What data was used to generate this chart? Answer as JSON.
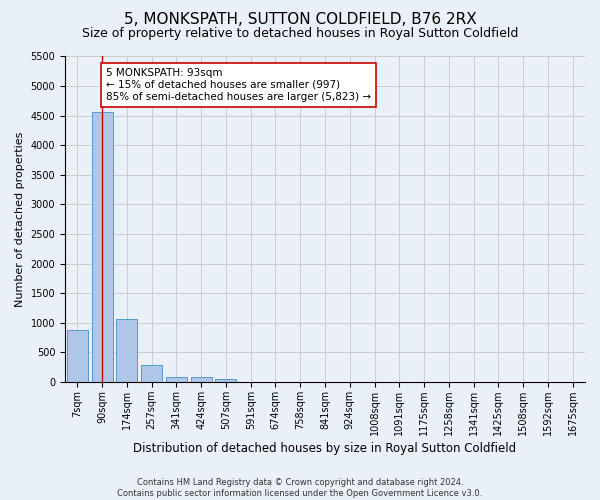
{
  "title": "5, MONKSPATH, SUTTON COLDFIELD, B76 2RX",
  "subtitle": "Size of property relative to detached houses in Royal Sutton Coldfield",
  "xlabel": "Distribution of detached houses by size in Royal Sutton Coldfield",
  "ylabel": "Number of detached properties",
  "footer_line1": "Contains HM Land Registry data © Crown copyright and database right 2024.",
  "footer_line2": "Contains public sector information licensed under the Open Government Licence v3.0.",
  "bar_labels": [
    "7sqm",
    "90sqm",
    "174sqm",
    "257sqm",
    "341sqm",
    "424sqm",
    "507sqm",
    "591sqm",
    "674sqm",
    "758sqm",
    "841sqm",
    "924sqm",
    "1008sqm",
    "1091sqm",
    "1175sqm",
    "1258sqm",
    "1341sqm",
    "1425sqm",
    "1508sqm",
    "1592sqm",
    "1675sqm"
  ],
  "bar_values": [
    870,
    4570,
    1060,
    290,
    85,
    75,
    55,
    0,
    0,
    0,
    0,
    0,
    0,
    0,
    0,
    0,
    0,
    0,
    0,
    0,
    0
  ],
  "bar_color": "#aec6e8",
  "bar_edge_color": "#5599cc",
  "property_line_x": 1.0,
  "property_line_color": "#cc0000",
  "annotation_text": "5 MONKSPATH: 93sqm\n← 15% of detached houses are smaller (997)\n85% of semi-detached houses are larger (5,823) →",
  "annotation_box_color": "#ffffff",
  "annotation_box_edge_color": "#cc0000",
  "ylim": [
    0,
    5500
  ],
  "yticks": [
    0,
    500,
    1000,
    1500,
    2000,
    2500,
    3000,
    3500,
    4000,
    4500,
    5000,
    5500
  ],
  "grid_color": "#cccccc",
  "background_color": "#eaf0f8",
  "title_fontsize": 11,
  "subtitle_fontsize": 9,
  "ylabel_fontsize": 8,
  "xlabel_fontsize": 8.5,
  "tick_fontsize": 7,
  "footer_fontsize": 6,
  "annotation_fontsize": 7.5
}
